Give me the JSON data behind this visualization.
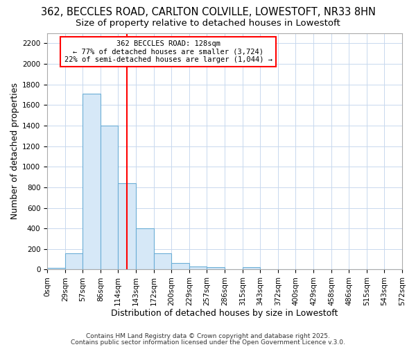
{
  "title": "362, BECCLES ROAD, CARLTON COLVILLE, LOWESTOFT, NR33 8HN",
  "subtitle": "Size of property relative to detached houses in Lowestoft",
  "xlabel": "Distribution of detached houses by size in Lowestoft",
  "ylabel": "Number of detached properties",
  "bar_color": "#d6e8f7",
  "bar_edge_color": "#6baed6",
  "bin_edges": [
    0,
    29,
    57,
    86,
    114,
    143,
    172,
    200,
    229,
    257,
    286,
    315,
    343,
    372,
    400,
    429,
    458,
    486,
    515,
    543,
    572
  ],
  "bar_heights": [
    15,
    160,
    1710,
    1400,
    840,
    400,
    160,
    65,
    30,
    25,
    0,
    25,
    0,
    0,
    0,
    0,
    0,
    0,
    0,
    0
  ],
  "vline_x": 128,
  "vline_color": "red",
  "annotation_line1": "362 BECCLES ROAD: 128sqm",
  "annotation_line2": "← 77% of detached houses are smaller (3,724)",
  "annotation_line3": "22% of semi-detached houses are larger (1,044) →",
  "annotation_box_color": "white",
  "annotation_border_color": "red",
  "ylim": [
    0,
    2300
  ],
  "yticks": [
    0,
    200,
    400,
    600,
    800,
    1000,
    1200,
    1400,
    1600,
    1800,
    2000,
    2200
  ],
  "xtick_labels": [
    "0sqm",
    "29sqm",
    "57sqm",
    "86sqm",
    "114sqm",
    "143sqm",
    "172sqm",
    "200sqm",
    "229sqm",
    "257sqm",
    "286sqm",
    "315sqm",
    "343sqm",
    "372sqm",
    "400sqm",
    "429sqm",
    "458sqm",
    "486sqm",
    "515sqm",
    "543sqm",
    "572sqm"
  ],
  "footer_line1": "Contains HM Land Registry data © Crown copyright and database right 2025.",
  "footer_line2": "Contains public sector information licensed under the Open Government Licence v.3.0.",
  "background_color": "#ffffff",
  "grid_color": "#c8d8ee",
  "title_fontsize": 10.5,
  "subtitle_fontsize": 9.5,
  "axis_fontsize": 9,
  "tick_fontsize": 7.5,
  "footer_fontsize": 6.5
}
